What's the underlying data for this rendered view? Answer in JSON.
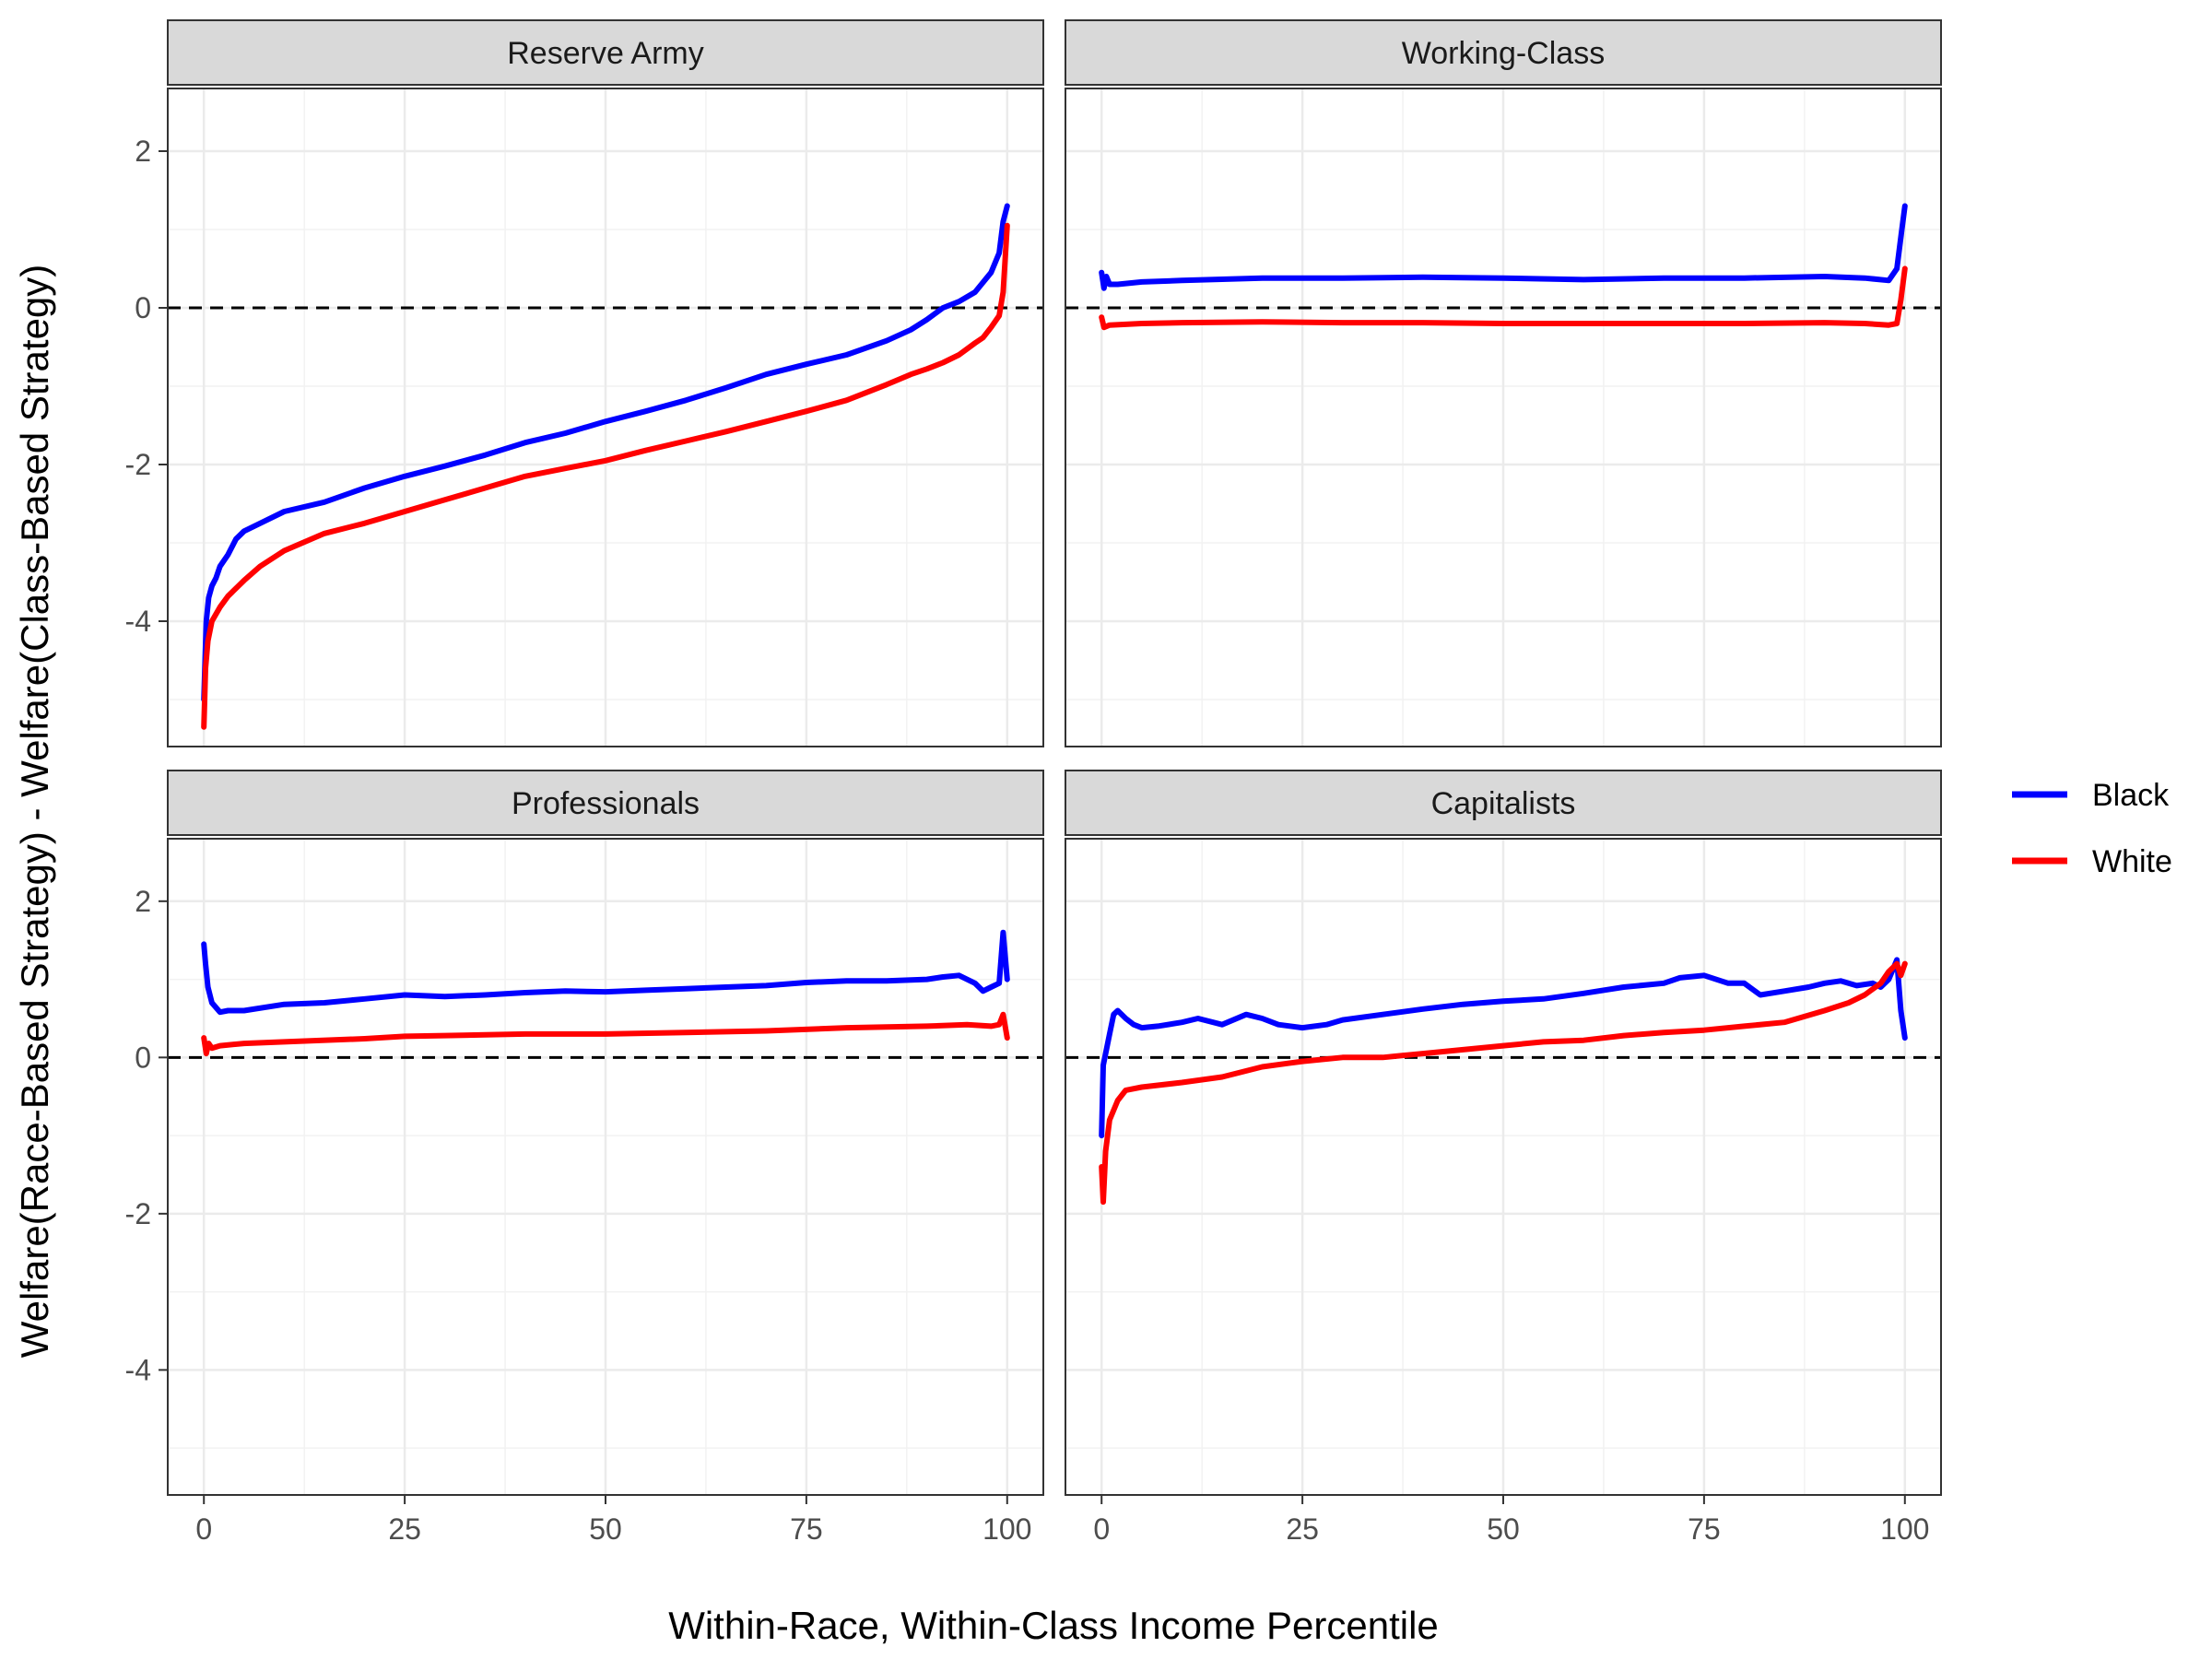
{
  "chart_data": {
    "type": "line",
    "layout": "facet-grid-2x2",
    "xlabel": "Within-Race, Within-Class Income Percentile",
    "ylabel": "Welfare(Race-Based Strategy) - Welfare(Class-Based Strategy)",
    "xlim": [
      -4.5,
      104.5
    ],
    "ylim": [
      -5.6,
      2.8
    ],
    "x_ticks": [
      0,
      25,
      50,
      75,
      100
    ],
    "y_ticks": [
      2,
      0,
      -2,
      -4
    ],
    "grid": true,
    "reference_line_y": 0,
    "legend": {
      "position": "right",
      "entries": [
        {
          "name": "Black",
          "color": "#0000ff"
        },
        {
          "name": "White",
          "color": "#ff0000"
        }
      ]
    },
    "panels": [
      {
        "title": "Reserve Army",
        "series": [
          {
            "name": "Black",
            "color": "#0000ff",
            "x": [
              0,
              0.3,
              0.6,
              1,
              1.5,
              2,
              3,
              4,
              5,
              7,
              10,
              15,
              20,
              25,
              30,
              35,
              40,
              45,
              50,
              55,
              60,
              65,
              70,
              75,
              80,
              85,
              88,
              90,
              92,
              94,
              96,
              98,
              99,
              99.5,
              100
            ],
            "y": [
              -5.0,
              -4.0,
              -3.7,
              -3.55,
              -3.45,
              -3.3,
              -3.15,
              -2.95,
              -2.85,
              -2.75,
              -2.6,
              -2.48,
              -2.3,
              -2.15,
              -2.02,
              -1.88,
              -1.72,
              -1.6,
              -1.45,
              -1.32,
              -1.18,
              -1.02,
              -0.85,
              -0.72,
              -0.6,
              -0.42,
              -0.28,
              -0.15,
              0.0,
              0.08,
              0.2,
              0.45,
              0.7,
              1.1,
              1.3
            ]
          },
          {
            "name": "White",
            "color": "#ff0000",
            "x": [
              0,
              0.2,
              0.5,
              1,
              2,
              3,
              5,
              7,
              10,
              15,
              20,
              25,
              30,
              35,
              40,
              45,
              50,
              55,
              60,
              65,
              70,
              75,
              80,
              85,
              88,
              90,
              92,
              94,
              96,
              97,
              98,
              99,
              99.5,
              100
            ],
            "y": [
              -5.35,
              -4.6,
              -4.25,
              -4.0,
              -3.82,
              -3.68,
              -3.48,
              -3.3,
              -3.1,
              -2.88,
              -2.75,
              -2.6,
              -2.45,
              -2.3,
              -2.15,
              -2.05,
              -1.95,
              -1.82,
              -1.7,
              -1.58,
              -1.45,
              -1.32,
              -1.18,
              -0.98,
              -0.85,
              -0.78,
              -0.7,
              -0.6,
              -0.45,
              -0.38,
              -0.25,
              -0.1,
              0.2,
              1.05
            ]
          }
        ]
      },
      {
        "title": "Working-Class",
        "series": [
          {
            "name": "Black",
            "color": "#0000ff",
            "x": [
              0,
              0.3,
              0.6,
              1,
              2,
              5,
              10,
              20,
              30,
              40,
              50,
              60,
              70,
              80,
              90,
              95,
              98,
              99,
              99.5,
              100
            ],
            "y": [
              0.45,
              0.25,
              0.4,
              0.3,
              0.3,
              0.33,
              0.35,
              0.38,
              0.38,
              0.39,
              0.38,
              0.36,
              0.38,
              0.38,
              0.4,
              0.38,
              0.35,
              0.5,
              0.9,
              1.3
            ]
          },
          {
            "name": "White",
            "color": "#ff0000",
            "x": [
              0,
              0.3,
              1,
              5,
              10,
              20,
              30,
              40,
              50,
              60,
              70,
              80,
              90,
              95,
              98,
              99,
              99.5,
              100
            ],
            "y": [
              -0.12,
              -0.25,
              -0.22,
              -0.2,
              -0.19,
              -0.18,
              -0.19,
              -0.19,
              -0.2,
              -0.2,
              -0.2,
              -0.2,
              -0.19,
              -0.2,
              -0.22,
              -0.2,
              0.1,
              0.5
            ]
          }
        ]
      },
      {
        "title": "Professionals",
        "series": [
          {
            "name": "Black",
            "color": "#0000ff",
            "x": [
              0,
              0.2,
              0.5,
              1,
              2,
              3,
              5,
              10,
              15,
              20,
              25,
              30,
              35,
              40,
              45,
              50,
              55,
              60,
              65,
              70,
              75,
              80,
              85,
              90,
              92,
              94,
              96,
              97,
              98,
              99,
              99.5,
              100
            ],
            "y": [
              1.45,
              1.2,
              0.9,
              0.7,
              0.58,
              0.6,
              0.6,
              0.68,
              0.7,
              0.75,
              0.8,
              0.78,
              0.8,
              0.83,
              0.85,
              0.84,
              0.86,
              0.88,
              0.9,
              0.92,
              0.96,
              0.98,
              0.98,
              1.0,
              1.03,
              1.05,
              0.95,
              0.85,
              0.9,
              0.95,
              1.6,
              1.0
            ]
          },
          {
            "name": "White",
            "color": "#ff0000",
            "x": [
              0,
              0.3,
              0.6,
              1,
              2,
              5,
              10,
              20,
              25,
              30,
              40,
              50,
              60,
              70,
              80,
              90,
              95,
              98,
              99,
              99.5,
              100
            ],
            "y": [
              0.25,
              0.05,
              0.18,
              0.12,
              0.15,
              0.18,
              0.2,
              0.24,
              0.27,
              0.28,
              0.3,
              0.3,
              0.32,
              0.34,
              0.38,
              0.4,
              0.42,
              0.4,
              0.42,
              0.55,
              0.25
            ]
          }
        ]
      },
      {
        "title": "Capitalists",
        "series": [
          {
            "name": "Black",
            "color": "#0000ff",
            "x": [
              0,
              0.2,
              0.5,
              1,
              1.5,
              2,
              3,
              4,
              5,
              7,
              10,
              12,
              15,
              18,
              20,
              22,
              25,
              28,
              30,
              35,
              40,
              45,
              50,
              55,
              60,
              65,
              70,
              72,
              75,
              78,
              80,
              82,
              85,
              88,
              90,
              92,
              94,
              96,
              97,
              98,
              99,
              99.5,
              100
            ],
            "y": [
              -1.0,
              -0.1,
              0.05,
              0.3,
              0.55,
              0.6,
              0.5,
              0.42,
              0.38,
              0.4,
              0.45,
              0.5,
              0.42,
              0.55,
              0.5,
              0.42,
              0.38,
              0.42,
              0.48,
              0.55,
              0.62,
              0.68,
              0.72,
              0.75,
              0.82,
              0.9,
              0.95,
              1.02,
              1.05,
              0.95,
              0.95,
              0.8,
              0.85,
              0.9,
              0.95,
              0.98,
              0.92,
              0.95,
              0.9,
              1.0,
              1.25,
              0.6,
              0.25
            ]
          },
          {
            "name": "White",
            "color": "#ff0000",
            "x": [
              0,
              0.2,
              0.5,
              1,
              2,
              3,
              5,
              10,
              15,
              20,
              25,
              30,
              35,
              40,
              45,
              50,
              55,
              60,
              65,
              70,
              75,
              80,
              85,
              90,
              93,
              95,
              97,
              98,
              99,
              99.5,
              100
            ],
            "y": [
              -1.4,
              -1.85,
              -1.2,
              -0.8,
              -0.55,
              -0.42,
              -0.38,
              -0.32,
              -0.25,
              -0.12,
              -0.05,
              0.0,
              0.0,
              0.05,
              0.1,
              0.15,
              0.2,
              0.22,
              0.28,
              0.32,
              0.35,
              0.4,
              0.45,
              0.6,
              0.7,
              0.8,
              0.95,
              1.1,
              1.2,
              1.05,
              1.2
            ]
          }
        ]
      }
    ]
  }
}
